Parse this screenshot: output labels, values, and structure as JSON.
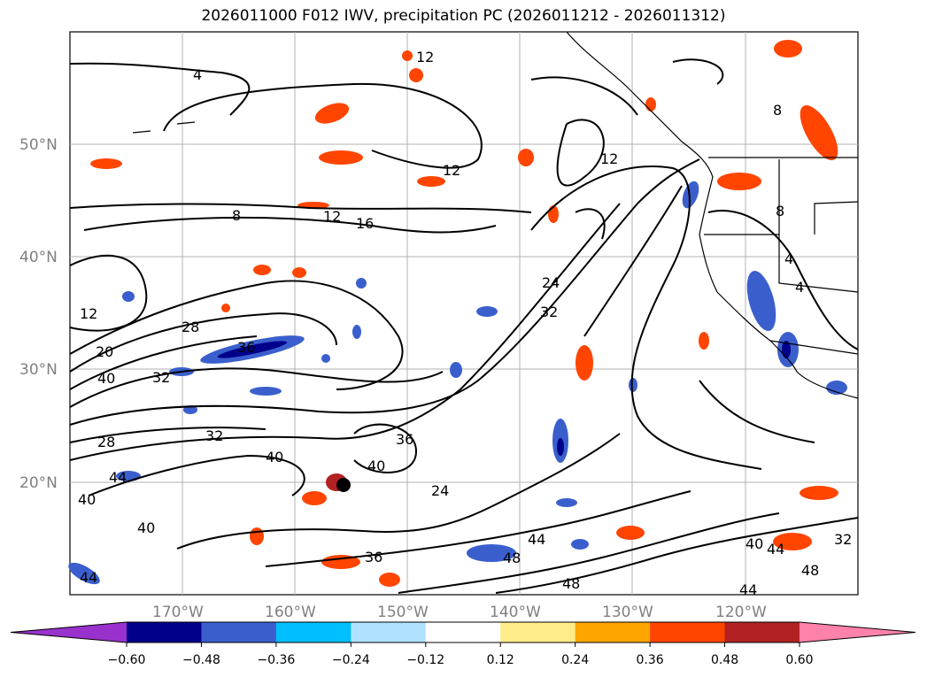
{
  "title": "2026011000 F012 IWV, precipitation PC (2026011212 - 2026011312)",
  "lat_labels": [
    "50°N",
    "40°N",
    "30°N",
    "20°N"
  ],
  "lon_labels": [
    "170°W",
    "160°W",
    "150°W",
    "140°W",
    "130°W",
    "120°W"
  ],
  "contour_labels": [
    "4",
    "12",
    "12",
    "8",
    "12",
    "16",
    "12",
    "24",
    "32",
    "28",
    "20",
    "36",
    "40",
    "32",
    "28",
    "32",
    "36",
    "40",
    "40",
    "44",
    "40",
    "40",
    "24",
    "36",
    "48",
    "44",
    "48",
    "44",
    "40",
    "44",
    "48",
    "4",
    "4",
    "8",
    "8",
    "12",
    "32",
    "44"
  ],
  "colorbar": {
    "ticks": [
      "−0.60",
      "−0.48",
      "−0.36",
      "−0.24",
      "−0.12",
      "0.12",
      "0.24",
      "0.36",
      "0.48",
      "0.60"
    ],
    "colors": [
      "#9932cc",
      "#00008b",
      "#3a5fcd",
      "#00bfff",
      "#b0e2ff",
      "#ffffff",
      "#ffec8b",
      "#ffa500",
      "#ff4500",
      "#b22222",
      "#ff82ab"
    ]
  }
}
